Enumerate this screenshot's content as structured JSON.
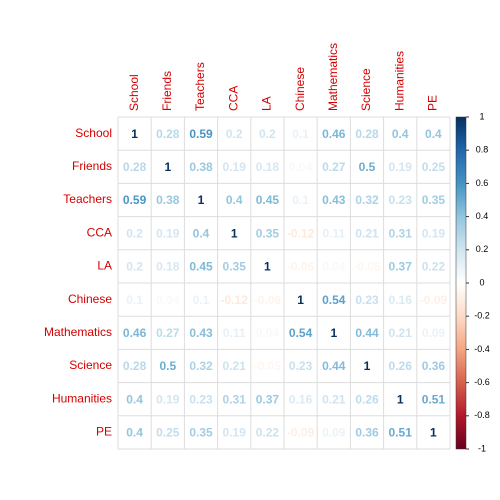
{
  "chart_data": {
    "type": "corrplot",
    "categories": [
      "School",
      "Friends",
      "Teachers",
      "CCA",
      "LA",
      "Chinese",
      "Mathematics",
      "Science",
      "Humanities",
      "PE"
    ],
    "values": [
      [
        1,
        0.28,
        0.59,
        0.2,
        0.2,
        0.1,
        0.46,
        0.28,
        0.4,
        0.4
      ],
      [
        0.28,
        1,
        0.38,
        0.19,
        0.18,
        0.04,
        0.27,
        0.5,
        0.19,
        0.25
      ],
      [
        0.59,
        0.38,
        1,
        0.4,
        0.45,
        0.1,
        0.43,
        0.32,
        0.23,
        0.35
      ],
      [
        0.2,
        0.19,
        0.4,
        1,
        0.35,
        -0.12,
        0.11,
        0.21,
        0.31,
        0.19
      ],
      [
        0.2,
        0.18,
        0.45,
        0.35,
        1,
        -0.06,
        0.04,
        -0.05,
        0.37,
        0.22
      ],
      [
        0.1,
        0.04,
        0.1,
        -0.12,
        -0.06,
        1,
        0.54,
        0.23,
        0.16,
        -0.09
      ],
      [
        0.46,
        0.27,
        0.43,
        0.11,
        0.04,
        0.54,
        1,
        0.44,
        0.21,
        0.09
      ],
      [
        0.28,
        0.5,
        0.32,
        0.21,
        -0.05,
        0.23,
        0.44,
        1,
        0.26,
        0.36
      ],
      [
        0.4,
        0.19,
        0.23,
        0.31,
        0.37,
        0.16,
        0.21,
        0.26,
        1,
        0.51
      ],
      [
        0.4,
        0.25,
        0.35,
        0.19,
        0.22,
        -0.09,
        0.09,
        0.36,
        0.51,
        1
      ]
    ],
    "colorscale": [
      "#67001F",
      "#B2182B",
      "#D6604D",
      "#F4A582",
      "#FDDBC7",
      "#FFFFFF",
      "#D1E5F0",
      "#92C5DE",
      "#4393C3",
      "#2166AC",
      "#053061"
    ],
    "clim": [
      -1,
      1
    ],
    "cticks": [
      -1,
      -0.8,
      -0.6,
      -0.4,
      -0.2,
      0,
      0.2,
      0.4,
      0.6,
      0.8,
      1
    ]
  }
}
